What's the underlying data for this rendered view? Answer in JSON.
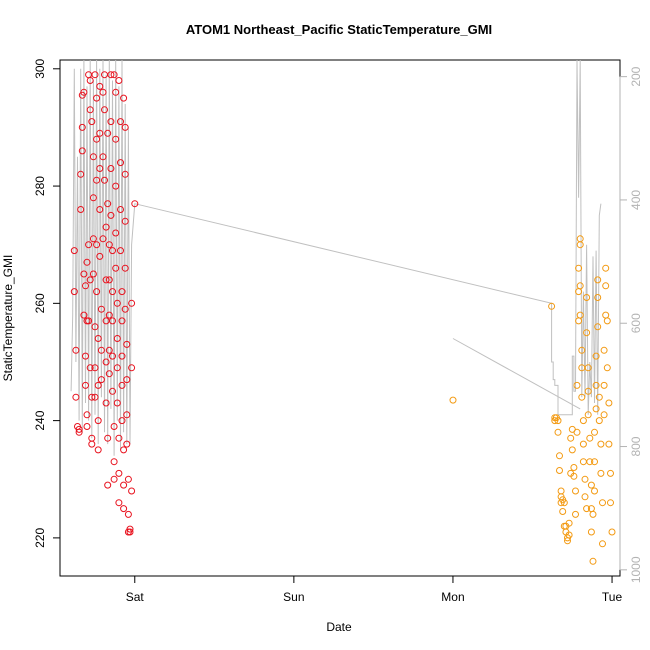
{
  "chart_data": {
    "type": "scatter",
    "title": "ATOM1 Northeast_Pacific StaticTemperature_GMI",
    "xlabel": "Date",
    "ylabel": "StaticTemperature_GMI",
    "x_unit": "days since Sat 00:00",
    "xlim": [
      -0.47,
      3.05
    ],
    "ylim": [
      213.5,
      301.5
    ],
    "x_ticks": [
      {
        "label": "Sat",
        "value": 0
      },
      {
        "label": "Sun",
        "value": 1
      },
      {
        "label": "Mon",
        "value": 2
      },
      {
        "label": "Tue",
        "value": 3
      }
    ],
    "y_ticks": [
      220,
      240,
      260,
      280,
      300
    ],
    "y2_label_values": [
      200,
      400,
      600,
      800,
      1000
    ],
    "y2_lim": [
      1010,
      173
    ],
    "y2_note": "right axis: pressure (hPa), inverted, grey",
    "colors": {
      "series1": "#e8121e",
      "series2": "#f39a12",
      "profile": "#c0c0c0",
      "axis": "#000000",
      "right_axis": "#b3b3b3"
    },
    "series": [
      {
        "name": "segment-1",
        "color": "#e8121e",
        "points": [
          [
            -0.38,
            269
          ],
          [
            -0.38,
            262
          ],
          [
            -0.37,
            252
          ],
          [
            -0.37,
            244
          ],
          [
            -0.36,
            239
          ],
          [
            -0.35,
            238
          ],
          [
            -0.35,
            238.5
          ],
          [
            -0.34,
            276
          ],
          [
            -0.34,
            282
          ],
          [
            -0.33,
            286
          ],
          [
            -0.33,
            290
          ],
          [
            -0.33,
            295.5
          ],
          [
            -0.32,
            296
          ],
          [
            -0.32,
            265
          ],
          [
            -0.32,
            258
          ],
          [
            -0.31,
            263
          ],
          [
            -0.31,
            251
          ],
          [
            -0.31,
            246
          ],
          [
            -0.3,
            257
          ],
          [
            -0.3,
            267
          ],
          [
            -0.3,
            241
          ],
          [
            -0.3,
            239
          ],
          [
            -0.29,
            257
          ],
          [
            -0.29,
            270
          ],
          [
            -0.29,
            299
          ],
          [
            -0.28,
            298
          ],
          [
            -0.28,
            293
          ],
          [
            -0.28,
            264
          ],
          [
            -0.28,
            249
          ],
          [
            -0.27,
            244
          ],
          [
            -0.27,
            237
          ],
          [
            -0.27,
            236
          ],
          [
            -0.27,
            291
          ],
          [
            -0.26,
            285
          ],
          [
            -0.26,
            278
          ],
          [
            -0.26,
            271
          ],
          [
            -0.26,
            265
          ],
          [
            -0.25,
            256
          ],
          [
            -0.25,
            249
          ],
          [
            -0.25,
            244
          ],
          [
            -0.25,
            299
          ],
          [
            -0.24,
            295
          ],
          [
            -0.24,
            288
          ],
          [
            -0.24,
            281
          ],
          [
            -0.24,
            270
          ],
          [
            -0.24,
            262
          ],
          [
            -0.23,
            254
          ],
          [
            -0.23,
            246
          ],
          [
            -0.23,
            240
          ],
          [
            -0.23,
            235
          ],
          [
            -0.22,
            297
          ],
          [
            -0.22,
            289
          ],
          [
            -0.22,
            283
          ],
          [
            -0.22,
            276
          ],
          [
            -0.22,
            268
          ],
          [
            -0.21,
            259
          ],
          [
            -0.21,
            252
          ],
          [
            -0.21,
            247
          ],
          [
            -0.2,
            271
          ],
          [
            -0.2,
            285
          ],
          [
            -0.2,
            296
          ],
          [
            -0.19,
            299
          ],
          [
            -0.19,
            293
          ],
          [
            -0.19,
            281
          ],
          [
            -0.18,
            273
          ],
          [
            -0.18,
            264
          ],
          [
            -0.18,
            257
          ],
          [
            -0.18,
            250
          ],
          [
            -0.18,
            243
          ],
          [
            -0.17,
            237
          ],
          [
            -0.17,
            229
          ],
          [
            -0.17,
            289
          ],
          [
            -0.17,
            277
          ],
          [
            -0.16,
            270
          ],
          [
            -0.16,
            264
          ],
          [
            -0.16,
            258
          ],
          [
            -0.16,
            252
          ],
          [
            -0.16,
            248
          ],
          [
            -0.15,
            299
          ],
          [
            -0.15,
            291
          ],
          [
            -0.15,
            283
          ],
          [
            -0.15,
            275
          ],
          [
            -0.14,
            269
          ],
          [
            -0.14,
            262
          ],
          [
            -0.14,
            257
          ],
          [
            -0.14,
            251
          ],
          [
            -0.14,
            245
          ],
          [
            -0.13,
            239
          ],
          [
            -0.13,
            233
          ],
          [
            -0.13,
            230
          ],
          [
            -0.13,
            299
          ],
          [
            -0.12,
            296
          ],
          [
            -0.12,
            288
          ],
          [
            -0.12,
            280
          ],
          [
            -0.12,
            272
          ],
          [
            -0.12,
            266
          ],
          [
            -0.11,
            260
          ],
          [
            -0.11,
            254
          ],
          [
            -0.11,
            249
          ],
          [
            -0.11,
            243
          ],
          [
            -0.1,
            237
          ],
          [
            -0.1,
            231
          ],
          [
            -0.1,
            226
          ],
          [
            -0.1,
            298
          ],
          [
            -0.09,
            291
          ],
          [
            -0.09,
            284
          ],
          [
            -0.09,
            276
          ],
          [
            -0.09,
            269
          ],
          [
            -0.08,
            262
          ],
          [
            -0.08,
            257
          ],
          [
            -0.08,
            251
          ],
          [
            -0.08,
            246
          ],
          [
            -0.08,
            240
          ],
          [
            -0.07,
            235
          ],
          [
            -0.07,
            229
          ],
          [
            -0.07,
            225
          ],
          [
            -0.07,
            295
          ],
          [
            -0.06,
            290
          ],
          [
            -0.06,
            282
          ],
          [
            -0.06,
            274
          ],
          [
            -0.06,
            266
          ],
          [
            -0.06,
            259
          ],
          [
            -0.05,
            253
          ],
          [
            -0.05,
            247
          ],
          [
            -0.05,
            241
          ],
          [
            -0.05,
            236
          ],
          [
            -0.04,
            230
          ],
          [
            -0.04,
            224
          ],
          [
            -0.04,
            221
          ],
          [
            -0.03,
            221
          ],
          [
            -0.03,
            221.5
          ],
          [
            -0.02,
            228
          ],
          [
            -0.02,
            249
          ],
          [
            -0.02,
            260
          ],
          [
            0.0,
            277
          ]
        ]
      },
      {
        "name": "segment-2",
        "color": "#f39a12",
        "points": [
          [
            2.0,
            243.5
          ],
          [
            2.62,
            259.5
          ],
          [
            2.64,
            240
          ],
          [
            2.64,
            240.5
          ],
          [
            2.65,
            240.5
          ],
          [
            2.66,
            240
          ],
          [
            2.66,
            238
          ],
          [
            2.67,
            234
          ],
          [
            2.67,
            231.5
          ],
          [
            2.68,
            228
          ],
          [
            2.68,
            227
          ],
          [
            2.68,
            226
          ],
          [
            2.69,
            224.5
          ],
          [
            2.69,
            226.5
          ],
          [
            2.7,
            226
          ],
          [
            2.7,
            222
          ],
          [
            2.71,
            222
          ],
          [
            2.71,
            221
          ],
          [
            2.72,
            219.5
          ],
          [
            2.72,
            220
          ],
          [
            2.73,
            220.5
          ],
          [
            2.73,
            222.5
          ],
          [
            2.74,
            231
          ],
          [
            2.74,
            237
          ],
          [
            2.75,
            238.5
          ],
          [
            2.75,
            235
          ],
          [
            2.76,
            232
          ],
          [
            2.76,
            230.5
          ],
          [
            2.77,
            228
          ],
          [
            2.77,
            224
          ],
          [
            2.78,
            238
          ],
          [
            2.78,
            246
          ],
          [
            2.79,
            257
          ],
          [
            2.79,
            262
          ],
          [
            2.79,
            266
          ],
          [
            2.8,
            271
          ],
          [
            2.8,
            270
          ],
          [
            2.8,
            263
          ],
          [
            2.8,
            258
          ],
          [
            2.81,
            252
          ],
          [
            2.81,
            249
          ],
          [
            2.81,
            244
          ],
          [
            2.82,
            240
          ],
          [
            2.82,
            236
          ],
          [
            2.82,
            233
          ],
          [
            2.83,
            230
          ],
          [
            2.83,
            227
          ],
          [
            2.84,
            225
          ],
          [
            2.84,
            261
          ],
          [
            2.84,
            255
          ],
          [
            2.85,
            249
          ],
          [
            2.85,
            245
          ],
          [
            2.85,
            241
          ],
          [
            2.86,
            237
          ],
          [
            2.86,
            233
          ],
          [
            2.87,
            229
          ],
          [
            2.87,
            225
          ],
          [
            2.87,
            221
          ],
          [
            2.88,
            216
          ],
          [
            2.88,
            224
          ],
          [
            2.89,
            228
          ],
          [
            2.89,
            233
          ],
          [
            2.89,
            238
          ],
          [
            2.9,
            242
          ],
          [
            2.9,
            246
          ],
          [
            2.9,
            251
          ],
          [
            2.91,
            256
          ],
          [
            2.91,
            261
          ],
          [
            2.91,
            264
          ],
          [
            2.92,
            244
          ],
          [
            2.92,
            240
          ],
          [
            2.93,
            236
          ],
          [
            2.93,
            231
          ],
          [
            2.94,
            226
          ],
          [
            2.94,
            219
          ],
          [
            2.95,
            241
          ],
          [
            2.95,
            246
          ],
          [
            2.95,
            252
          ],
          [
            2.96,
            258
          ],
          [
            2.96,
            263
          ],
          [
            2.96,
            266
          ],
          [
            2.97,
            257
          ],
          [
            2.97,
            249
          ],
          [
            2.98,
            243
          ],
          [
            2.98,
            236
          ],
          [
            2.99,
            231
          ],
          [
            2.99,
            226
          ],
          [
            3.0,
            221
          ]
        ]
      }
    ],
    "profile_line": {
      "color": "#c0c0c0",
      "points": [
        [
          -0.4,
          245
        ],
        [
          -0.39,
          258
        ],
        [
          -0.38,
          300
        ],
        [
          -0.37,
          250
        ],
        [
          -0.36,
          285
        ],
        [
          -0.35,
          240
        ],
        [
          -0.34,
          300
        ],
        [
          -0.33,
          238
        ],
        [
          -0.32,
          301.5
        ],
        [
          -0.31,
          243
        ],
        [
          -0.3,
          297
        ],
        [
          -0.29,
          240
        ],
        [
          -0.28,
          301.5
        ],
        [
          -0.27,
          237
        ],
        [
          -0.26,
          298
        ],
        [
          -0.25,
          241
        ],
        [
          -0.24,
          301.5
        ],
        [
          -0.23,
          236
        ],
        [
          -0.22,
          300
        ],
        [
          -0.21,
          244
        ],
        [
          -0.2,
          301.5
        ],
        [
          -0.19,
          238
        ],
        [
          -0.18,
          299
        ],
        [
          -0.17,
          236
        ],
        [
          -0.16,
          301.5
        ],
        [
          -0.15,
          242
        ],
        [
          -0.14,
          298
        ],
        [
          -0.13,
          234
        ],
        [
          -0.12,
          301.5
        ],
        [
          -0.11,
          240
        ],
        [
          -0.1,
          297
        ],
        [
          -0.09,
          235
        ],
        [
          -0.08,
          301.5
        ],
        [
          -0.07,
          238
        ],
        [
          -0.06,
          294
        ],
        [
          -0.05,
          236
        ],
        [
          -0.04,
          290
        ],
        [
          -0.03,
          236
        ],
        [
          -0.02,
          270
        ],
        [
          0.0,
          277
        ],
        [
          2.62,
          260
        ],
        [
          2.62,
          250
        ],
        [
          2.63,
          250
        ],
        [
          2.63,
          247
        ],
        [
          2.64,
          247
        ],
        [
          2.64,
          246
        ],
        [
          2.66,
          246
        ],
        [
          2.66,
          241
        ],
        [
          2.75,
          241
        ],
        [
          2.75,
          251
        ],
        [
          2.76,
          251
        ],
        [
          2.76,
          245
        ],
        [
          2.77,
          245
        ],
        [
          2.78,
          301.5
        ],
        [
          2.79,
          278
        ],
        [
          2.8,
          301.5
        ],
        [
          2.81,
          244
        ],
        [
          2.82,
          262
        ],
        [
          2.83,
          244
        ],
        [
          2.84,
          270
        ],
        [
          2.85,
          241
        ],
        [
          2.86,
          250
        ],
        [
          2.87,
          244
        ],
        [
          2.88,
          268
        ],
        [
          2.89,
          243
        ],
        [
          2.9,
          269
        ],
        [
          2.91,
          241
        ],
        [
          2.92,
          275
        ],
        [
          2.93,
          277
        ]
      ],
      "second_segment": [
        [
          2.0,
          254
        ],
        [
          2.8,
          242
        ]
      ]
    }
  }
}
